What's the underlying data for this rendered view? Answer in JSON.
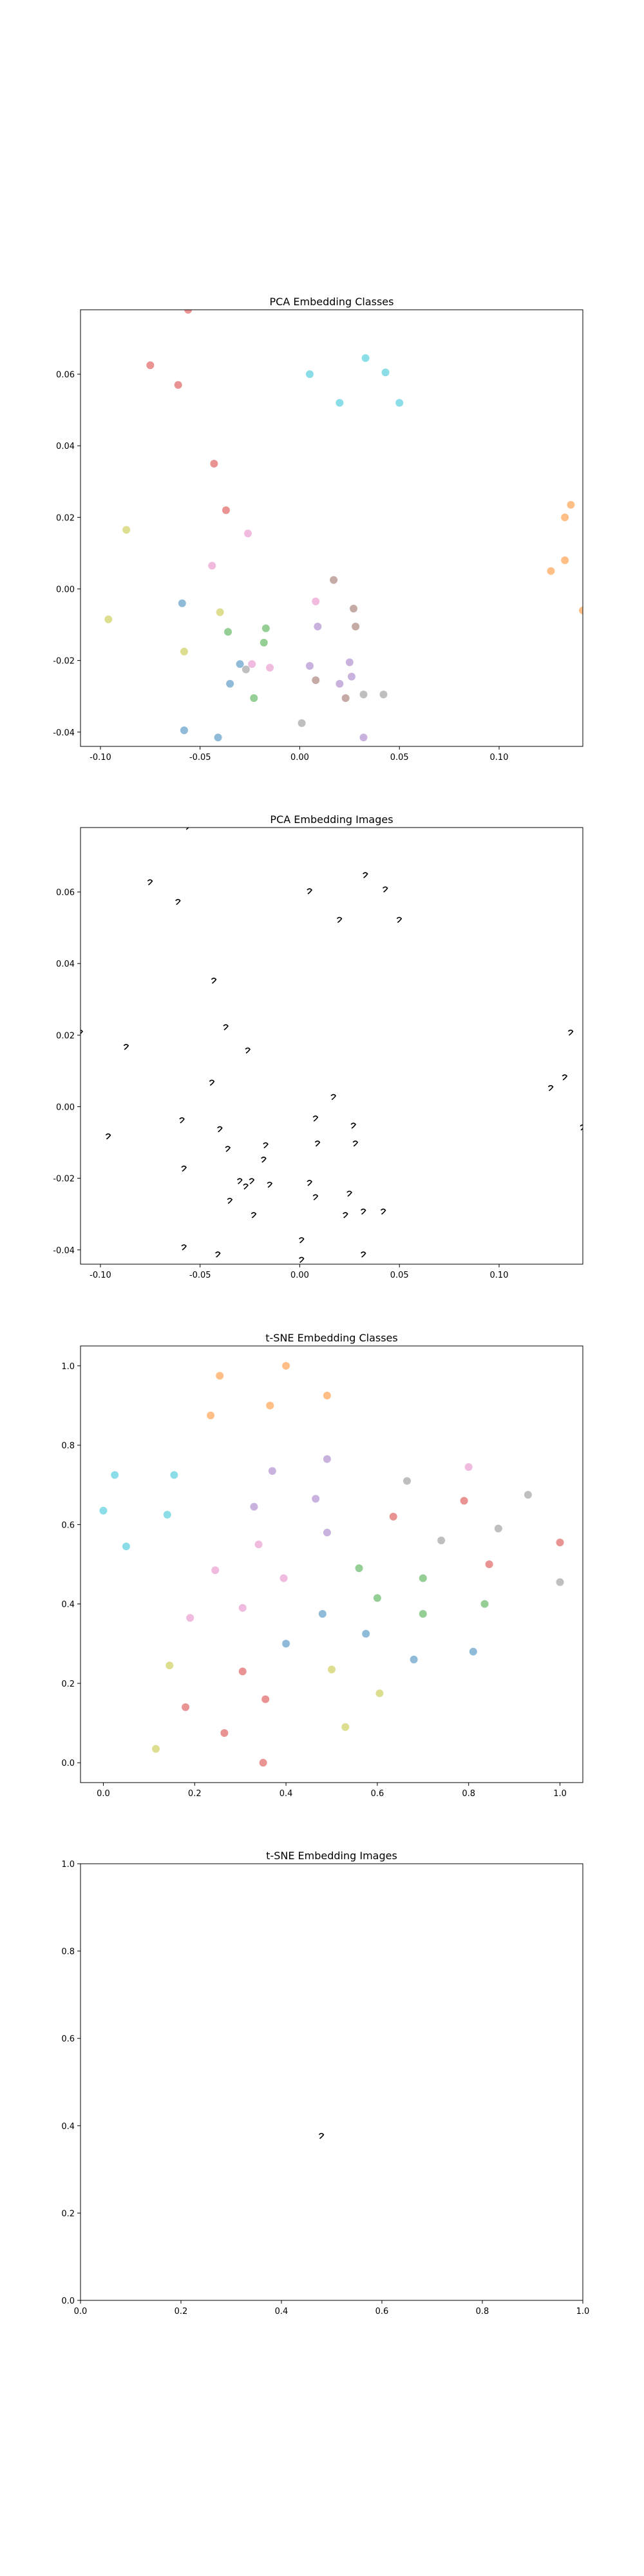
{
  "panel_colors": {
    "blue": "#1f77b4",
    "orange": "#ff7f0e",
    "green": "#2ca02c",
    "red": "#d62728",
    "purple": "#9467bd",
    "brown": "#8c564b",
    "pink": "#e377c2",
    "gray": "#7f7f7f",
    "olive": "#bcbd22",
    "cyan": "#17becf"
  },
  "chart_data": [
    {
      "type": "scatter",
      "title": "PCA Embedding Classes",
      "xlim": [
        -0.11,
        0.142
      ],
      "ylim": [
        -0.044,
        0.078
      ],
      "xticks": [
        "-0.10",
        "-0.05",
        "0.00",
        "0.05",
        "0.10"
      ],
      "xtick_values": [
        -0.1,
        -0.05,
        0.0,
        0.05,
        0.1
      ],
      "yticks": [
        "-0.04",
        "-0.02",
        "0.00",
        "0.02",
        "0.04",
        "0.06"
      ],
      "ytick_values": [
        -0.04,
        -0.02,
        0.0,
        0.02,
        0.04,
        0.06
      ],
      "grid": false,
      "marker_alpha": 0.5,
      "points": [
        {
          "x": -0.056,
          "y": 0.078,
          "c": "red"
        },
        {
          "x": -0.075,
          "y": 0.0625,
          "c": "red"
        },
        {
          "x": -0.061,
          "y": 0.057,
          "c": "red"
        },
        {
          "x": -0.043,
          "y": 0.035,
          "c": "red"
        },
        {
          "x": -0.037,
          "y": 0.022,
          "c": "red"
        },
        {
          "x": 0.033,
          "y": 0.0645,
          "c": "cyan"
        },
        {
          "x": 0.043,
          "y": 0.0605,
          "c": "cyan"
        },
        {
          "x": 0.005,
          "y": 0.06,
          "c": "cyan"
        },
        {
          "x": 0.02,
          "y": 0.052,
          "c": "cyan"
        },
        {
          "x": 0.05,
          "y": 0.052,
          "c": "cyan"
        },
        {
          "x": 0.136,
          "y": 0.0235,
          "c": "orange"
        },
        {
          "x": 0.133,
          "y": 0.02,
          "c": "orange"
        },
        {
          "x": 0.133,
          "y": 0.008,
          "c": "orange"
        },
        {
          "x": 0.126,
          "y": 0.005,
          "c": "orange"
        },
        {
          "x": 0.142,
          "y": -0.006,
          "c": "orange"
        },
        {
          "x": -0.087,
          "y": 0.0165,
          "c": "olive"
        },
        {
          "x": -0.096,
          "y": -0.0085,
          "c": "olive"
        },
        {
          "x": -0.04,
          "y": -0.0065,
          "c": "olive"
        },
        {
          "x": -0.058,
          "y": -0.0175,
          "c": "olive"
        },
        {
          "x": -0.026,
          "y": 0.0155,
          "c": "pink"
        },
        {
          "x": -0.044,
          "y": 0.0065,
          "c": "pink"
        },
        {
          "x": 0.008,
          "y": -0.0035,
          "c": "pink"
        },
        {
          "x": -0.024,
          "y": -0.021,
          "c": "pink"
        },
        {
          "x": -0.015,
          "y": -0.022,
          "c": "pink"
        },
        {
          "x": -0.059,
          "y": -0.004,
          "c": "blue"
        },
        {
          "x": -0.03,
          "y": -0.021,
          "c": "blue"
        },
        {
          "x": -0.035,
          "y": -0.0265,
          "c": "blue"
        },
        {
          "x": -0.058,
          "y": -0.0395,
          "c": "blue"
        },
        {
          "x": -0.041,
          "y": -0.0415,
          "c": "blue"
        },
        {
          "x": -0.036,
          "y": -0.012,
          "c": "green"
        },
        {
          "x": -0.017,
          "y": -0.011,
          "c": "green"
        },
        {
          "x": -0.018,
          "y": -0.015,
          "c": "green"
        },
        {
          "x": -0.023,
          "y": -0.0305,
          "c": "green"
        },
        {
          "x": 0.017,
          "y": 0.0025,
          "c": "brown"
        },
        {
          "x": 0.027,
          "y": -0.0055,
          "c": "brown"
        },
        {
          "x": 0.028,
          "y": -0.0105,
          "c": "brown"
        },
        {
          "x": 0.008,
          "y": -0.0255,
          "c": "brown"
        },
        {
          "x": 0.023,
          "y": -0.0305,
          "c": "brown"
        },
        {
          "x": 0.009,
          "y": -0.0105,
          "c": "purple"
        },
        {
          "x": 0.005,
          "y": -0.0215,
          "c": "purple"
        },
        {
          "x": 0.025,
          "y": -0.0205,
          "c": "purple"
        },
        {
          "x": 0.026,
          "y": -0.0245,
          "c": "purple"
        },
        {
          "x": 0.02,
          "y": -0.0265,
          "c": "purple"
        },
        {
          "x": 0.042,
          "y": -0.0295,
          "c": "gray"
        },
        {
          "x": 0.032,
          "y": -0.0295,
          "c": "gray"
        },
        {
          "x": 0.001,
          "y": -0.0375,
          "c": "gray"
        },
        {
          "x": 0.032,
          "y": -0.0415,
          "c": "purple"
        },
        {
          "x": -0.027,
          "y": -0.0225,
          "c": "gray"
        }
      ]
    },
    {
      "type": "scatter",
      "title": "PCA Embedding Images",
      "xlim": [
        -0.11,
        0.142
      ],
      "ylim": [
        -0.044,
        0.078
      ],
      "xticks": [
        "-0.10",
        "-0.05",
        "0.00",
        "0.05",
        "0.10"
      ],
      "xtick_values": [
        -0.1,
        -0.05,
        0.0,
        0.05,
        0.1
      ],
      "yticks": [
        "-0.04",
        "-0.02",
        "0.00",
        "0.02",
        "0.04",
        "0.06"
      ],
      "ytick_values": [
        -0.04,
        -0.02,
        0.0,
        0.02,
        0.04,
        0.06
      ],
      "grid": false,
      "marker": "digit-image",
      "points": [
        {
          "x": -0.056,
          "y": 0.078
        },
        {
          "x": -0.075,
          "y": 0.0625
        },
        {
          "x": -0.061,
          "y": 0.057
        },
        {
          "x": -0.043,
          "y": 0.035
        },
        {
          "x": -0.037,
          "y": 0.022
        },
        {
          "x": 0.033,
          "y": 0.0645
        },
        {
          "x": 0.043,
          "y": 0.0605
        },
        {
          "x": 0.005,
          "y": 0.06
        },
        {
          "x": 0.02,
          "y": 0.052
        },
        {
          "x": 0.05,
          "y": 0.052
        },
        {
          "x": 0.136,
          "y": 0.0205
        },
        {
          "x": 0.133,
          "y": 0.008
        },
        {
          "x": 0.126,
          "y": 0.005
        },
        {
          "x": 0.142,
          "y": -0.006
        },
        {
          "x": -0.087,
          "y": 0.0165
        },
        {
          "x": -0.11,
          "y": 0.0205
        },
        {
          "x": -0.096,
          "y": -0.0085
        },
        {
          "x": -0.04,
          "y": -0.0065
        },
        {
          "x": -0.058,
          "y": -0.0175
        },
        {
          "x": -0.026,
          "y": 0.0155
        },
        {
          "x": -0.044,
          "y": 0.0065
        },
        {
          "x": 0.008,
          "y": -0.0035
        },
        {
          "x": -0.024,
          "y": -0.021
        },
        {
          "x": -0.015,
          "y": -0.022
        },
        {
          "x": -0.059,
          "y": -0.004
        },
        {
          "x": -0.03,
          "y": -0.021
        },
        {
          "x": -0.035,
          "y": -0.0265
        },
        {
          "x": -0.058,
          "y": -0.0395
        },
        {
          "x": -0.041,
          "y": -0.0415
        },
        {
          "x": -0.036,
          "y": -0.012
        },
        {
          "x": -0.017,
          "y": -0.011
        },
        {
          "x": -0.018,
          "y": -0.015
        },
        {
          "x": -0.023,
          "y": -0.0305
        },
        {
          "x": 0.017,
          "y": 0.0025
        },
        {
          "x": 0.027,
          "y": -0.0055
        },
        {
          "x": 0.028,
          "y": -0.0105
        },
        {
          "x": 0.008,
          "y": -0.0255
        },
        {
          "x": 0.023,
          "y": -0.0305
        },
        {
          "x": 0.009,
          "y": -0.0105
        },
        {
          "x": 0.005,
          "y": -0.0215
        },
        {
          "x": 0.025,
          "y": -0.0245
        },
        {
          "x": 0.042,
          "y": -0.0295
        },
        {
          "x": 0.032,
          "y": -0.0295
        },
        {
          "x": 0.001,
          "y": -0.0375
        },
        {
          "x": 0.032,
          "y": -0.0415
        },
        {
          "x": -0.027,
          "y": -0.0225
        },
        {
          "x": 0.001,
          "y": -0.043
        }
      ]
    },
    {
      "type": "scatter",
      "title": "t-SNE Embedding Classes",
      "xlim": [
        -0.05,
        1.05
      ],
      "ylim": [
        -0.05,
        1.05
      ],
      "xticks": [
        "0.0",
        "0.2",
        "0.4",
        "0.6",
        "0.8",
        "1.0"
      ],
      "xtick_values": [
        0,
        0.2,
        0.4,
        0.6,
        0.8,
        1.0
      ],
      "yticks": [
        "0.0",
        "0.2",
        "0.4",
        "0.6",
        "0.8",
        "1.0"
      ],
      "ytick_values": [
        0,
        0.2,
        0.4,
        0.6,
        0.8,
        1.0
      ],
      "grid": false,
      "marker_alpha": 0.5,
      "points": [
        {
          "x": 0.4,
          "y": 1.0,
          "c": "orange"
        },
        {
          "x": 0.255,
          "y": 0.975,
          "c": "orange"
        },
        {
          "x": 0.49,
          "y": 0.925,
          "c": "orange"
        },
        {
          "x": 0.365,
          "y": 0.9,
          "c": "orange"
        },
        {
          "x": 0.235,
          "y": 0.875,
          "c": "orange"
        },
        {
          "x": 0.025,
          "y": 0.725,
          "c": "cyan"
        },
        {
          "x": 0.155,
          "y": 0.725,
          "c": "cyan"
        },
        {
          "x": 0.0,
          "y": 0.635,
          "c": "cyan"
        },
        {
          "x": 0.14,
          "y": 0.625,
          "c": "cyan"
        },
        {
          "x": 0.05,
          "y": 0.545,
          "c": "cyan"
        },
        {
          "x": 0.49,
          "y": 0.765,
          "c": "purple"
        },
        {
          "x": 0.37,
          "y": 0.735,
          "c": "purple"
        },
        {
          "x": 0.465,
          "y": 0.665,
          "c": "purple"
        },
        {
          "x": 0.33,
          "y": 0.645,
          "c": "purple"
        },
        {
          "x": 0.49,
          "y": 0.58,
          "c": "purple"
        },
        {
          "x": 0.8,
          "y": 0.745,
          "c": "pink"
        },
        {
          "x": 0.665,
          "y": 0.71,
          "c": "gray"
        },
        {
          "x": 0.93,
          "y": 0.675,
          "c": "gray"
        },
        {
          "x": 0.79,
          "y": 0.66,
          "c": "red"
        },
        {
          "x": 0.635,
          "y": 0.62,
          "c": "red"
        },
        {
          "x": 0.865,
          "y": 0.59,
          "c": "gray"
        },
        {
          "x": 0.74,
          "y": 0.56,
          "c": "gray"
        },
        {
          "x": 1.0,
          "y": 0.555,
          "c": "red"
        },
        {
          "x": 0.845,
          "y": 0.5,
          "c": "red"
        },
        {
          "x": 1.0,
          "y": 0.455,
          "c": "gray"
        },
        {
          "x": 0.34,
          "y": 0.55,
          "c": "pink"
        },
        {
          "x": 0.245,
          "y": 0.485,
          "c": "pink"
        },
        {
          "x": 0.395,
          "y": 0.465,
          "c": "pink"
        },
        {
          "x": 0.305,
          "y": 0.39,
          "c": "pink"
        },
        {
          "x": 0.19,
          "y": 0.365,
          "c": "pink"
        },
        {
          "x": 0.56,
          "y": 0.49,
          "c": "green"
        },
        {
          "x": 0.7,
          "y": 0.465,
          "c": "green"
        },
        {
          "x": 0.6,
          "y": 0.415,
          "c": "green"
        },
        {
          "x": 0.835,
          "y": 0.4,
          "c": "green"
        },
        {
          "x": 0.7,
          "y": 0.375,
          "c": "green"
        },
        {
          "x": 0.48,
          "y": 0.375,
          "c": "blue"
        },
        {
          "x": 0.575,
          "y": 0.325,
          "c": "blue"
        },
        {
          "x": 0.4,
          "y": 0.3,
          "c": "blue"
        },
        {
          "x": 0.81,
          "y": 0.28,
          "c": "blue"
        },
        {
          "x": 0.68,
          "y": 0.26,
          "c": "blue"
        },
        {
          "x": 0.145,
          "y": 0.245,
          "c": "olive"
        },
        {
          "x": 0.5,
          "y": 0.235,
          "c": "olive"
        },
        {
          "x": 0.605,
          "y": 0.175,
          "c": "olive"
        },
        {
          "x": 0.53,
          "y": 0.09,
          "c": "olive"
        },
        {
          "x": 0.115,
          "y": 0.035,
          "c": "olive"
        },
        {
          "x": 0.305,
          "y": 0.23,
          "c": "red"
        },
        {
          "x": 0.355,
          "y": 0.16,
          "c": "red"
        },
        {
          "x": 0.18,
          "y": 0.14,
          "c": "red"
        },
        {
          "x": 0.265,
          "y": 0.075,
          "c": "red"
        },
        {
          "x": 0.35,
          "y": 0.0,
          "c": "red"
        }
      ]
    },
    {
      "type": "scatter",
      "title": "t-SNE Embedding Images",
      "xlim": [
        0,
        1
      ],
      "ylim": [
        0,
        1
      ],
      "xticks": [
        "0.0",
        "0.2",
        "0.4",
        "0.6",
        "0.8",
        "1.0"
      ],
      "xtick_values": [
        0,
        0.2,
        0.4,
        0.6,
        0.8,
        1.0
      ],
      "yticks": [
        "0.0",
        "0.2",
        "0.4",
        "0.6",
        "0.8",
        "1.0"
      ],
      "ytick_values": [
        0,
        0.2,
        0.4,
        0.6,
        0.8,
        1.0
      ],
      "grid": false,
      "marker": "digit-image",
      "points": [
        {
          "x": 0.48,
          "y": 0.375
        }
      ]
    }
  ]
}
